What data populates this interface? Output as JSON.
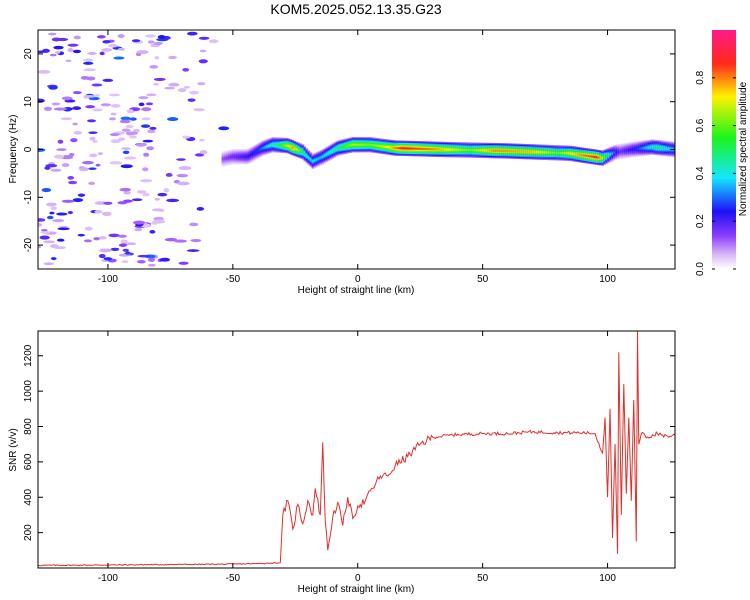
{
  "title": "KOM5.2025.052.13.35.G23",
  "chart_data": [
    {
      "type": "heatmap",
      "xlabel": "Height of straight line (km)",
      "ylabel": "Frequency (Hz)",
      "xlim": [
        -128,
        127
      ],
      "ylim": [
        -25,
        25
      ],
      "xticks": [
        -100,
        -50,
        0,
        50,
        100
      ],
      "xtick_labels": [
        "-100",
        "-50",
        "0",
        "50",
        "100"
      ],
      "yticks": [
        -20,
        -10,
        0,
        10,
        20
      ],
      "ytick_labels": [
        "-20",
        "-10",
        "0",
        "10",
        "20"
      ],
      "grid": false,
      "colorbar": {
        "label": "Normalized spectral amplitude",
        "range": [
          0,
          1
        ],
        "ticks": [
          0,
          0.2,
          0.4,
          0.6,
          0.8
        ],
        "tick_labels": [
          "0.0",
          "0.2",
          "0.4",
          "0.6",
          "0.8"
        ],
        "colormap": "rainbow (purple-blue-cyan-green-yellow-red-magenta)"
      },
      "main_band": {
        "center_freq_hz": [
          {
            "x": -54,
            "y": -2
          },
          {
            "x": -50,
            "y": -1.5
          },
          {
            "x": -44,
            "y": -1.5
          },
          {
            "x": -38,
            "y": 0.3
          },
          {
            "x": -34,
            "y": 1
          },
          {
            "x": -28,
            "y": 0.8
          },
          {
            "x": -22,
            "y": -0.5
          },
          {
            "x": -18,
            "y": -2.5
          },
          {
            "x": -14,
            "y": -1.5
          },
          {
            "x": -8,
            "y": 0.3
          },
          {
            "x": -2,
            "y": 1
          },
          {
            "x": 5,
            "y": 1
          },
          {
            "x": 15,
            "y": 0.3
          },
          {
            "x": 35,
            "y": 0
          },
          {
            "x": 60,
            "y": -0.3
          },
          {
            "x": 85,
            "y": -0.8
          },
          {
            "x": 98,
            "y": -1.8
          },
          {
            "x": 103,
            "y": -0.6
          },
          {
            "x": 110,
            "y": 0
          },
          {
            "x": 118,
            "y": 0.5
          },
          {
            "x": 127,
            "y": 0
          }
        ],
        "amplitude": [
          {
            "x": -54,
            "v": 0.15
          },
          {
            "x": -40,
            "v": 0.3
          },
          {
            "x": -32,
            "v": 0.55
          },
          {
            "x": -26,
            "v": 0.9
          },
          {
            "x": -20,
            "v": 0.45
          },
          {
            "x": -15,
            "v": 0.4
          },
          {
            "x": -8,
            "v": 0.55
          },
          {
            "x": -2,
            "v": 0.75
          },
          {
            "x": 5,
            "v": 0.7
          },
          {
            "x": 12,
            "v": 0.8
          },
          {
            "x": 18,
            "v": 1.0
          },
          {
            "x": 30,
            "v": 0.9
          },
          {
            "x": 45,
            "v": 0.7
          },
          {
            "x": 55,
            "v": 0.9
          },
          {
            "x": 70,
            "v": 0.85
          },
          {
            "x": 80,
            "v": 0.7
          },
          {
            "x": 90,
            "v": 0.9
          },
          {
            "x": 96,
            "v": 1.0
          },
          {
            "x": 101,
            "v": 0.45
          },
          {
            "x": 105,
            "v": 0.2
          },
          {
            "x": 112,
            "v": 0.3
          },
          {
            "x": 120,
            "v": 0.55
          },
          {
            "x": 127,
            "v": 0.4
          }
        ],
        "halfwidth_hz": 1.0
      },
      "noise_region_x": [
        -128,
        -50
      ],
      "noise_amplitude_range": [
        0.05,
        0.3
      ]
    },
    {
      "type": "line",
      "xlabel": "Height of straight line (km)",
      "ylabel": "SNR (v/v)",
      "xlim": [
        -128,
        127
      ],
      "ylim": [
        0,
        1340
      ],
      "xticks": [
        -100,
        -50,
        0,
        50,
        100
      ],
      "xtick_labels": [
        "-100",
        "-50",
        "0",
        "50",
        "100"
      ],
      "yticks": [
        200,
        400,
        600,
        800,
        1000,
        1200
      ],
      "ytick_labels": [
        "200",
        "400",
        "600",
        "800",
        "1000",
        "1200"
      ],
      "grid": false,
      "series": [
        {
          "color": "#e0302a",
          "points": [
            [
              -128,
              15
            ],
            [
              -110,
              16
            ],
            [
              -90,
              18
            ],
            [
              -70,
              20
            ],
            [
              -50,
              22
            ],
            [
              -40,
              25
            ],
            [
              -31,
              30
            ],
            [
              -30,
              300
            ],
            [
              -28,
              380
            ],
            [
              -26,
              220
            ],
            [
              -24,
              360
            ],
            [
              -22,
              250
            ],
            [
              -20,
              380
            ],
            [
              -18,
              300
            ],
            [
              -17,
              450
            ],
            [
              -15,
              300
            ],
            [
              -14,
              710
            ],
            [
              -13,
              260
            ],
            [
              -12,
              100
            ],
            [
              -10,
              290
            ],
            [
              -8,
              370
            ],
            [
              -6,
              240
            ],
            [
              -4,
              400
            ],
            [
              -2,
              280
            ],
            [
              0,
              350
            ],
            [
              3,
              380
            ],
            [
              6,
              450
            ],
            [
              9,
              520
            ],
            [
              12,
              520
            ],
            [
              15,
              580
            ],
            [
              20,
              630
            ],
            [
              25,
              700
            ],
            [
              30,
              740
            ],
            [
              40,
              755
            ],
            [
              50,
              760
            ],
            [
              60,
              760
            ],
            [
              70,
              770
            ],
            [
              80,
              765
            ],
            [
              90,
              765
            ],
            [
              95,
              760
            ],
            [
              98,
              650
            ],
            [
              99,
              850
            ],
            [
              100,
              400
            ],
            [
              101,
              900
            ],
            [
              102,
              170
            ],
            [
              103,
              700
            ],
            [
              104,
              80
            ],
            [
              104.5,
              1220
            ],
            [
              105.5,
              300
            ],
            [
              106.5,
              1040
            ],
            [
              107.5,
              420
            ],
            [
              108.5,
              850
            ],
            [
              109.5,
              380
            ],
            [
              110.5,
              950
            ],
            [
              111.5,
              150
            ],
            [
              112,
              1340
            ],
            [
              112.5,
              700
            ],
            [
              113.5,
              760
            ],
            [
              116,
              740
            ],
            [
              120,
              760
            ],
            [
              124,
              745
            ],
            [
              127,
              750
            ]
          ]
        }
      ]
    }
  ]
}
